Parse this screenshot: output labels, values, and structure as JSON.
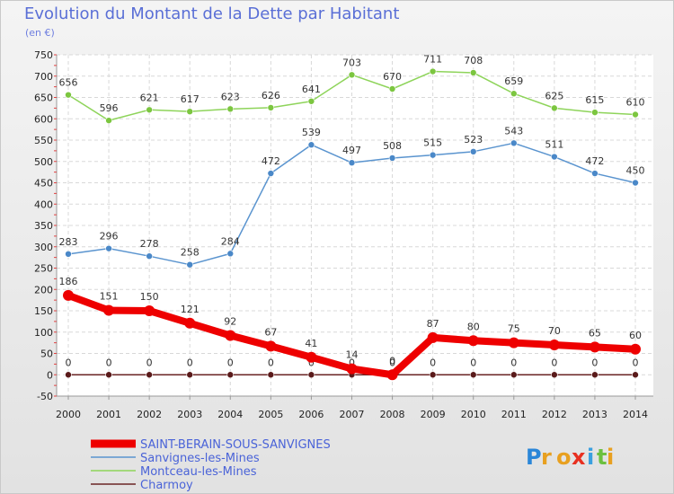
{
  "title": "Evolution du Montant de la Dette par Habitant",
  "subtitle": "(en €)",
  "brand": {
    "letters": [
      "P",
      "r",
      "o",
      "x",
      "i",
      "t",
      "i"
    ],
    "colors": [
      "#2a86d8",
      "#e8a020",
      "#e8a020",
      "#e83020",
      "#3aa0e0",
      "#6cc040",
      "#e8a020"
    ]
  },
  "chart_data": {
    "type": "line",
    "x": [
      2000,
      2001,
      2002,
      2003,
      2004,
      2005,
      2006,
      2007,
      2008,
      2009,
      2010,
      2011,
      2012,
      2013,
      2014
    ],
    "ylim": [
      -50,
      750
    ],
    "y_ticks": [
      -50,
      0,
      50,
      100,
      150,
      200,
      250,
      300,
      350,
      400,
      450,
      500,
      550,
      600,
      650,
      700,
      750
    ],
    "grid": true,
    "legend_position": "bottom-left",
    "series": [
      {
        "name": "Montceau-les-Mines",
        "color": "#8ed45a",
        "marker": "#7cc640",
        "width": 1.5,
        "radius": 3.5,
        "values": [
          656,
          596,
          621,
          617,
          623,
          626,
          641,
          703,
          670,
          711,
          708,
          659,
          625,
          615,
          610
        ]
      },
      {
        "name": "Sanvignes-les-Mines",
        "color": "#5a94cf",
        "marker": "#4a88c8",
        "width": 1.5,
        "radius": 3.5,
        "values": [
          283,
          296,
          278,
          258,
          284,
          472,
          539,
          497,
          508,
          515,
          523,
          543,
          511,
          472,
          450
        ]
      },
      {
        "name": "Charmoy",
        "color": "#6a2424",
        "marker": "#5a1a1a",
        "width": 1.5,
        "radius": 3.5,
        "values": [
          0,
          0,
          0,
          0,
          0,
          0,
          0,
          0,
          0,
          0,
          0,
          0,
          0,
          0,
          0
        ]
      },
      {
        "name": "SAINT-BERAIN-SOUS-SANVIGNES",
        "color": "#ee0000",
        "marker": "#ee0000",
        "width": 8,
        "radius": 6,
        "values": [
          186,
          151,
          150,
          121,
          92,
          67,
          41,
          14,
          0,
          87,
          80,
          75,
          70,
          65,
          60
        ]
      }
    ],
    "legend": [
      "SAINT-BERAIN-SOUS-SANVIGNES",
      "Sanvignes-les-Mines",
      "Montceau-les-Mines",
      "Charmoy"
    ]
  }
}
